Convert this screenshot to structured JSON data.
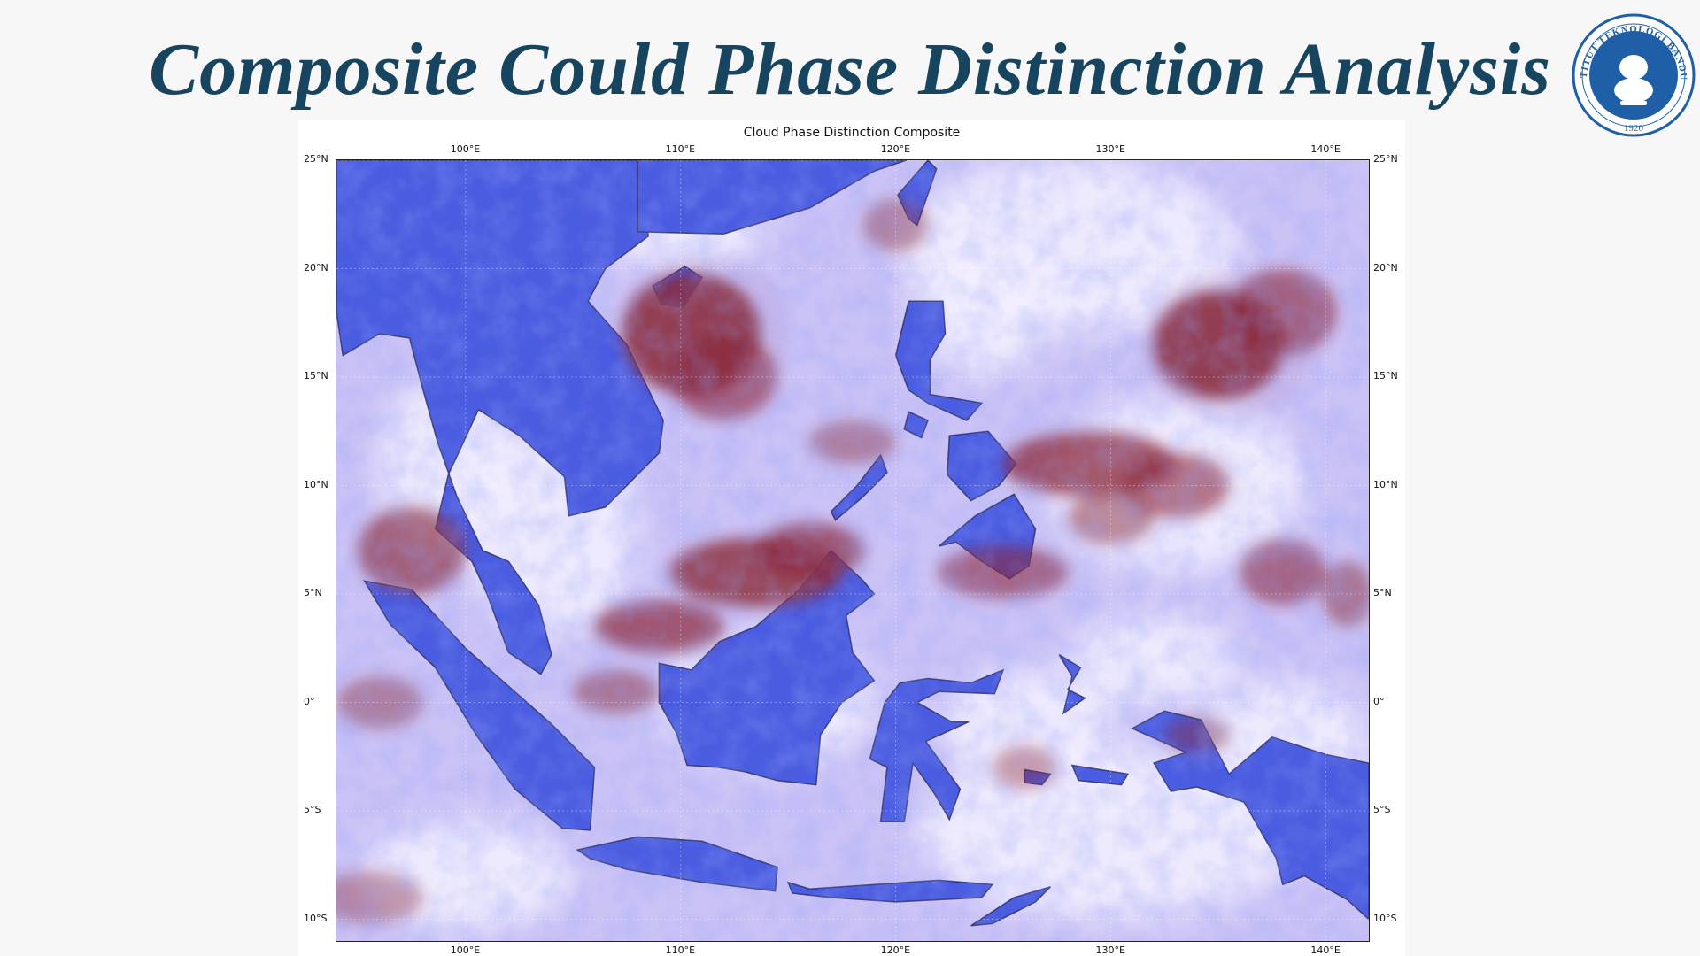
{
  "slide": {
    "title": "Composite Could Phase Distinction Analysis"
  },
  "logo": {
    "ring_text": "INSTITUT TEKNOLOGI BANDUNG",
    "year": "1920",
    "color": "#1f5fa8"
  },
  "figure": {
    "title": "Cloud Phase Distinction Composite",
    "extent": {
      "lon": [
        94,
        142
      ],
      "lat": [
        -11,
        25
      ]
    },
    "lon_ticks": [
      {
        "value": 100,
        "label": "100°E"
      },
      {
        "value": 110,
        "label": "110°E"
      },
      {
        "value": 120,
        "label": "120°E"
      },
      {
        "value": 130,
        "label": "130°E"
      },
      {
        "value": 140,
        "label": "140°E"
      }
    ],
    "lat_ticks": [
      {
        "value": 25,
        "label": "25°N"
      },
      {
        "value": 20,
        "label": "20°N"
      },
      {
        "value": 15,
        "label": "15°N"
      },
      {
        "value": 10,
        "label": "10°N"
      },
      {
        "value": 5,
        "label": "5°N"
      },
      {
        "value": 0,
        "label": "0°"
      },
      {
        "value": -5,
        "label": "5°S"
      },
      {
        "value": -10,
        "label": "10°S"
      }
    ],
    "colors": {
      "land": "#4a5ce0",
      "ice_cloud": "#8c2a3a",
      "water_cloud": "#f2eefe",
      "background": "#c8c0f4",
      "coastline": "#2a2a5a"
    },
    "gridlines": true
  }
}
